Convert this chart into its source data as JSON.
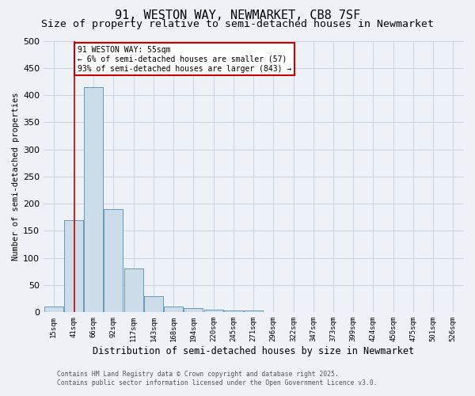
{
  "title": "91, WESTON WAY, NEWMARKET, CB8 7SF",
  "subtitle": "Size of property relative to semi-detached houses in Newmarket",
  "xlabel": "Distribution of semi-detached houses by size in Newmarket",
  "ylabel": "Number of semi-detached properties",
  "bar_labels": [
    "15sqm",
    "41sqm",
    "66sqm",
    "92sqm",
    "117sqm",
    "143sqm",
    "168sqm",
    "194sqm",
    "220sqm",
    "245sqm",
    "271sqm",
    "296sqm",
    "322sqm",
    "347sqm",
    "373sqm",
    "399sqm",
    "424sqm",
    "450sqm",
    "475sqm",
    "501sqm",
    "526sqm"
  ],
  "bar_values": [
    10,
    170,
    415,
    190,
    80,
    30,
    10,
    8,
    5,
    3,
    3,
    0,
    0,
    0,
    0,
    0,
    0,
    0,
    0,
    0,
    0
  ],
  "bar_color": "#ccdce8",
  "bar_edge_color": "#6699bb",
  "grid_color": "#c8d4e0",
  "background_color": "#eef2f7",
  "red_line_x": 1.05,
  "annotation_text": "91 WESTON WAY: 55sqm\n← 6% of semi-detached houses are smaller (57)\n93% of semi-detached houses are larger (843) →",
  "annotation_box_color": "#ffffff",
  "annotation_border_color": "#cc0000",
  "footer_line1": "Contains HM Land Registry data © Crown copyright and database right 2025.",
  "footer_line2": "Contains public sector information licensed under the Open Government Licence v3.0.",
  "ylim": [
    0,
    500
  ],
  "yticks": [
    0,
    50,
    100,
    150,
    200,
    250,
    300,
    350,
    400,
    450,
    500
  ],
  "title_fontsize": 11,
  "subtitle_fontsize": 9.5
}
